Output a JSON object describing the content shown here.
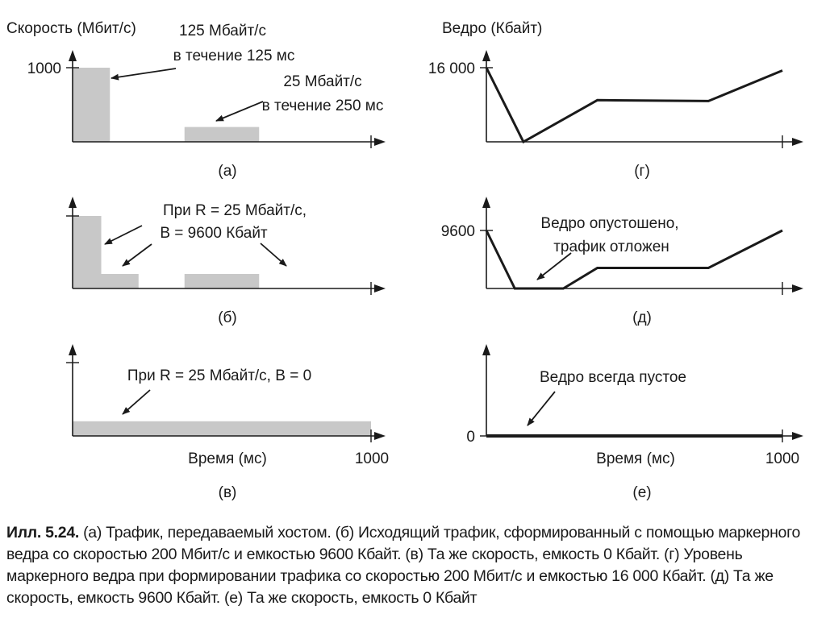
{
  "chart_data": [
    {
      "id": "a",
      "type": "bar",
      "panel_label": "(а)",
      "ylabel": "Скорость (Мбит/с)",
      "xlabel": "",
      "xlim": [
        0,
        1000
      ],
      "ylim": [
        0,
        1000
      ],
      "y_ticks": [
        "1000"
      ],
      "segments": [
        {
          "start": 0,
          "end": 125,
          "value": 1000
        },
        {
          "start": 375,
          "end": 625,
          "value": 200
        }
      ],
      "annotations": [
        {
          "lines": [
            "125 Мбайт/с",
            "в течение 125 мс"
          ]
        },
        {
          "lines": [
            "25 Мбайт/с",
            "в течение 250 мс"
          ]
        }
      ]
    },
    {
      "id": "b",
      "type": "bar",
      "panel_label": "(б)",
      "xlim": [
        0,
        1000
      ],
      "ylim": [
        0,
        1000
      ],
      "segments": [
        {
          "start": 0,
          "end": 96,
          "value": 1000
        },
        {
          "start": 96,
          "end": 221,
          "value": 200
        },
        {
          "start": 375,
          "end": 625,
          "value": 200
        }
      ],
      "annotations": [
        {
          "lines": [
            "При R = 25 Мбайт/с,",
            "B = 9600 Кбайт"
          ]
        }
      ]
    },
    {
      "id": "c",
      "type": "bar",
      "panel_label": "(в)",
      "xlabel": "Время (мс)",
      "xlim": [
        0,
        1000
      ],
      "ylim": [
        0,
        1000
      ],
      "x_ticks": [
        "1000"
      ],
      "segments": [
        {
          "start": 0,
          "end": 1000,
          "value": 200
        }
      ],
      "annotations": [
        {
          "lines": [
            "При R = 25 Мбайт/с, B = 0"
          ]
        }
      ]
    },
    {
      "id": "d",
      "type": "line",
      "panel_label": "(г)",
      "ylabel": "Ведро (Кбайт)",
      "xlim": [
        0,
        1000
      ],
      "ylim": [
        0,
        16000
      ],
      "y_ticks": [
        "16 000"
      ],
      "points": [
        [
          0,
          16000
        ],
        [
          125,
          0
        ],
        [
          375,
          9000
        ],
        [
          750,
          8800
        ],
        [
          1000,
          15400
        ]
      ]
    },
    {
      "id": "e",
      "type": "line",
      "panel_label": "(д)",
      "xlim": [
        0,
        1000
      ],
      "ylim": [
        0,
        9600
      ],
      "y_ticks": [
        "9600"
      ],
      "points": [
        [
          0,
          9600
        ],
        [
          96,
          0
        ],
        [
          260,
          0
        ],
        [
          375,
          3400
        ],
        [
          750,
          3400
        ],
        [
          1000,
          9600
        ]
      ],
      "annotations": [
        {
          "lines": [
            "Ведро опустошено,",
            "трафик отложен"
          ]
        }
      ]
    },
    {
      "id": "f",
      "type": "line",
      "panel_label": "(е)",
      "xlabel": "Время (мс)",
      "xlim": [
        0,
        1000
      ],
      "ylim": [
        0,
        1
      ],
      "y_ticks": [
        "0"
      ],
      "x_ticks": [
        "1000"
      ],
      "points": [
        [
          0,
          0
        ],
        [
          1000,
          0
        ]
      ],
      "annotations": [
        {
          "lines": [
            "Ведро всегда пустое"
          ]
        }
      ]
    }
  ],
  "caption": {
    "label": "Илл. 5.24.",
    "text": " (а) Трафик, передаваемый хостом. (б) Исходящий трафик, сформированный с помощью маркерного ведра со скоростью 200 Мбит/с и емкостью 9600 Кбайт. (в) Та же скорость, емкость 0 Кбайт. (г) Уровень маркерного ведра при формировании трафика со скоростью 200 Мбит/с и емкостью 16 000 Кбайт. (д) Та же скорость, емкость 9600 Кбайт. (е) Та же скорость, емкость 0 Кбайт"
  },
  "colors": {
    "bar_fill": "#c8c8c8",
    "ink": "#1a1a1a"
  }
}
